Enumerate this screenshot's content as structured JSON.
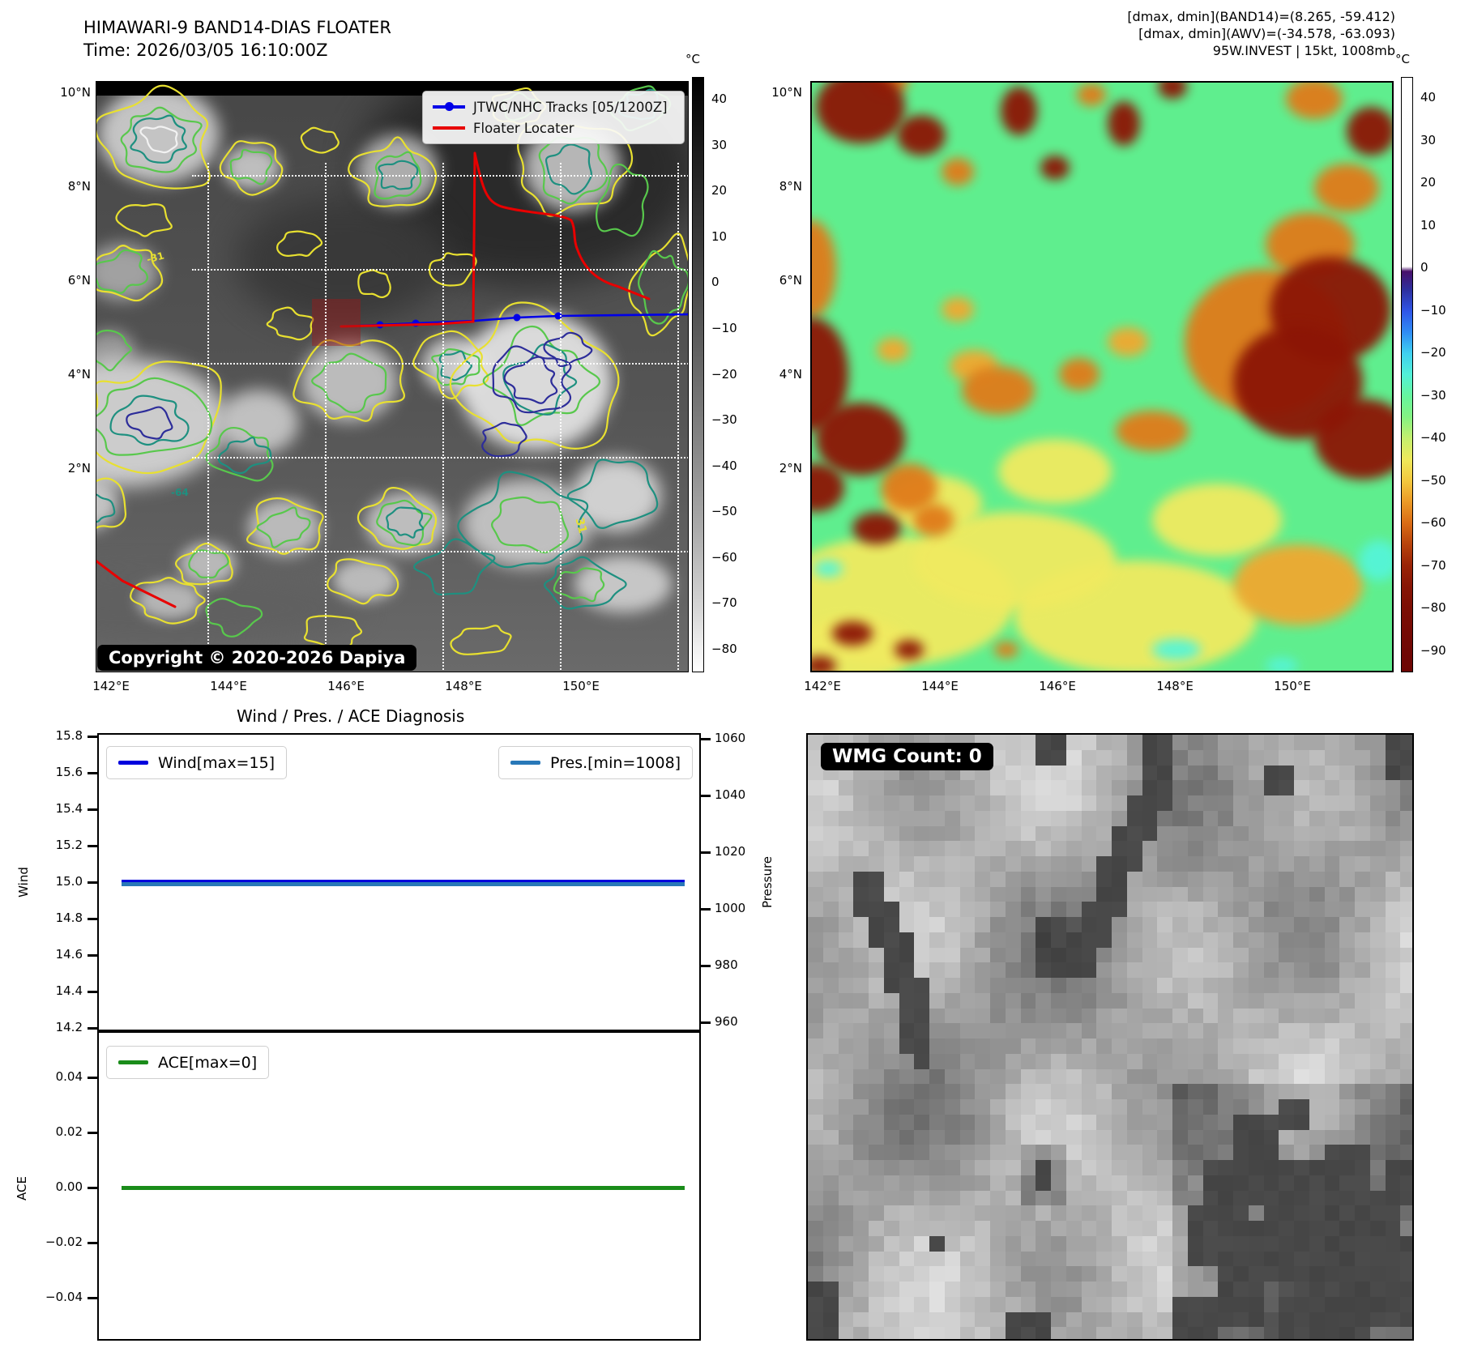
{
  "header": {
    "title": "HIMAWARI-9 BAND14-DIAS FLOATER",
    "time": "Time: 2026/03/05 16:10:00Z",
    "dmax_band14": "[dmax, dmin](BAND14)=(8.265, -59.412)",
    "dmax_awv": "[dmax, dmin](AWV)=(-34.578, -63.093)",
    "storm_info": "95W.INVEST | 15kt, 1008mb"
  },
  "band14_map": {
    "legend": {
      "track_label": "JTWC/NHC Tracks [05/1200Z]",
      "floater_label": "Floater Locater"
    },
    "copyright": "Copyright © 2020-2026 Dapiya",
    "lat_ticks": [
      "10°N",
      "8°N",
      "6°N",
      "4°N",
      "2°N"
    ],
    "lon_ticks": [
      "142°E",
      "144°E",
      "146°E",
      "148°E",
      "150°E"
    ],
    "contour_labels": [
      "-31",
      "-64",
      "31"
    ],
    "colorbar": {
      "unit": "°C",
      "ticks": [
        "40",
        "30",
        "20",
        "10",
        "0",
        "−10",
        "−20",
        "−30",
        "−40",
        "−50",
        "−60",
        "−70",
        "−80"
      ]
    }
  },
  "awv_map": {
    "lat_ticks": [
      "10°N",
      "8°N",
      "6°N",
      "4°N",
      "2°N"
    ],
    "lon_ticks": [
      "142°E",
      "144°E",
      "146°E",
      "148°E",
      "150°E"
    ],
    "colorbar": {
      "unit": "°C",
      "ticks": [
        "40",
        "30",
        "20",
        "10",
        "0",
        "−10",
        "−20",
        "−30",
        "−40",
        "−50",
        "−60",
        "−70",
        "−80",
        "−90"
      ]
    }
  },
  "wmg_panel": {
    "count_label": "WMG Count: 0"
  },
  "chart_data": {
    "type": "line",
    "title": "Wind / Pres. / ACE Diagnosis",
    "panels": [
      {
        "left_ylabel": "Wind",
        "left_ylim": [
          14.1,
          15.9
        ],
        "left_ytick_labels": [
          "15.8",
          "15.6",
          "15.4",
          "15.2",
          "15.0",
          "14.8",
          "14.6",
          "14.4",
          "14.2"
        ],
        "left_ytick_values": [
          15.8,
          15.6,
          15.4,
          15.2,
          15.0,
          14.8,
          14.6,
          14.4,
          14.2
        ],
        "right_ylabel": "Pressure",
        "right_ylim": [
          957,
          1062
        ],
        "right_ytick_labels": [
          "1060",
          "1040",
          "1020",
          "1000",
          "980",
          "960"
        ],
        "right_ytick_values": [
          1060,
          1040,
          1020,
          1000,
          980,
          960
        ],
        "series": [
          {
            "name": "Wind[max=15]",
            "axis": "left",
            "constant_value": 15,
            "color": "#0000dd"
          },
          {
            "name": "Pres.[min=1008]",
            "axis": "right",
            "constant_value": 1008,
            "color": "#2878b8"
          }
        ]
      },
      {
        "left_ylabel": "ACE",
        "left_ylim": [
          -0.056,
          0.052
        ],
        "left_ytick_labels": [
          "0.04",
          "0.02",
          "0.00",
          "−0.02",
          "−0.04"
        ],
        "left_ytick_values": [
          0.04,
          0.02,
          0.0,
          -0.02,
          -0.04
        ],
        "series": [
          {
            "name": "ACE[max=0]",
            "axis": "left",
            "constant_value": 0,
            "color": "#1a8c1a"
          }
        ]
      }
    ],
    "grid": false,
    "legend_position": "upper-left / upper-right inside axes"
  },
  "colors": {
    "wind_line": "#0000dd",
    "pres_line": "#2878b8",
    "ace_line": "#1a8c1a",
    "track_line": "#0000e8",
    "floater_line": "#e80000",
    "contour_yellow": "#e8e030",
    "contour_green": "#58c84c",
    "contour_teal": "#1e9080",
    "contour_navy": "#2d2d9a",
    "awv_base_green": "#5fee8e",
    "awv_dark_red": "#8c1505",
    "awv_orange": "#e07b1a",
    "awv_yellow": "#f0ea60",
    "awv_cyan": "#55f5d8"
  }
}
